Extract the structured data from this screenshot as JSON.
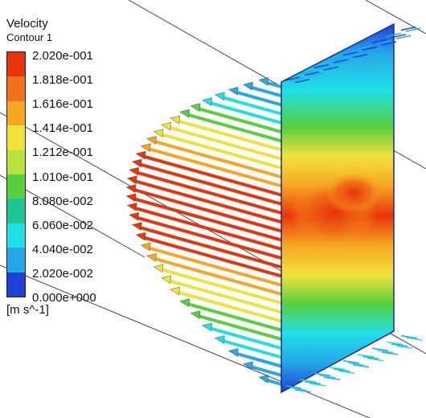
{
  "legend": {
    "title": "Velocity",
    "subtitle": "Contour 1",
    "units": "[m s^-1]",
    "labels": [
      "2.020e-001",
      "1.818e-001",
      "1.616e-001",
      "1.414e-001",
      "1.212e-001",
      "1.010e-001",
      "8.080e-002",
      "6.060e-002",
      "4.040e-002",
      "2.020e-002",
      "0.000e+000"
    ],
    "colors": [
      "#e8340a",
      "#f2701a",
      "#f7a622",
      "#f1e23a",
      "#b9e23a",
      "#58cf3c",
      "#1fc493",
      "#1fe0e6",
      "#25a8e8",
      "#1f3fd8"
    ]
  },
  "scene": {
    "colors": {
      "max": "#e8340a",
      "high": "#f7a622",
      "mid": "#f1e23a",
      "midlow": "#58cf3c",
      "low": "#1fe0e6",
      "lower": "#25a8e8",
      "min": "#1f3fd8"
    }
  }
}
